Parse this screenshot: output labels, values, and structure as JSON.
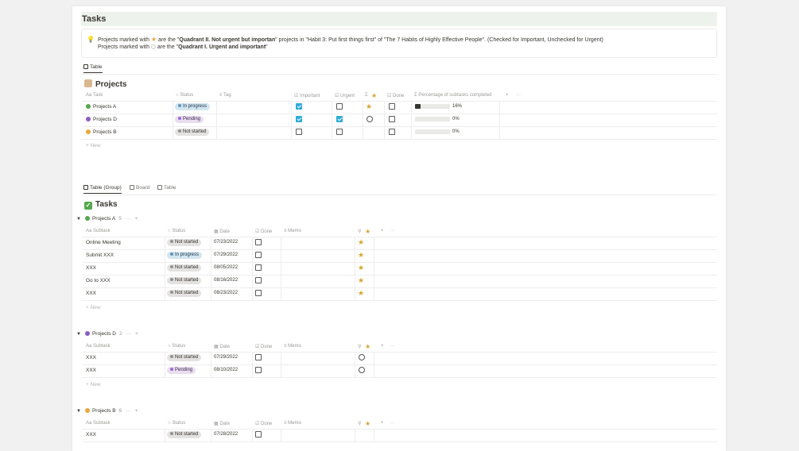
{
  "page": {
    "title": "Tasks"
  },
  "callout": {
    "line1_a": "Projects marked with",
    "line1_b": "are the \"",
    "line1_c": "Quadrant II. Not urgent but importan",
    "line1_d": "\" projects  in \"Habit 3: Put first things first\" of \"The 7 Habits of Highly Effective People\". (Checked for Important, Unchecked for Urgent)",
    "line2_a": "Projects marked with",
    "line2_b": "are the \"",
    "line2_c": "Quadrant I. Urgent and important",
    "line2_d": "\""
  },
  "projects_view": {
    "tabs": [
      "Table"
    ],
    "heading": "Projects",
    "columns": [
      "Task",
      "Status",
      "Tag",
      "Important",
      "Urgent",
      "Done",
      "Percentage of subtasks completed"
    ],
    "rows": [
      {
        "task": "Projects A",
        "status": "In progress",
        "important": true,
        "urgent": false,
        "mark": "star",
        "done": false,
        "pct": 0.16,
        "pct_label": "16%"
      },
      {
        "task": "Projects D",
        "status": "Pending",
        "important": true,
        "urgent": true,
        "mark": "circle",
        "done": false,
        "pct": 0,
        "pct_label": "0%"
      },
      {
        "task": "Projects B",
        "status": "Not started",
        "important": false,
        "urgent": false,
        "mark": "",
        "done": false,
        "pct": 0,
        "pct_label": "0%"
      }
    ],
    "new_label": "+ New"
  },
  "tasks_view": {
    "tabs": [
      "Table (Group)",
      "Board",
      "Table"
    ],
    "heading": "Tasks",
    "columns": [
      "Subtask",
      "Status",
      "Date",
      "Done",
      "Memo"
    ],
    "groups": [
      {
        "name": "Projects A",
        "count": "5",
        "rows": [
          {
            "subtask": "Online Meeting",
            "status": "Not started",
            "date": "07/23/2022",
            "mark": "star"
          },
          {
            "subtask": "Submit XXX",
            "status": "In progress",
            "date": "07/29/2022",
            "mark": "star"
          },
          {
            "subtask": "XXX",
            "status": "Not started",
            "date": "08/05/2022",
            "mark": "star"
          },
          {
            "subtask": "Go to XXX",
            "status": "Not started",
            "date": "08/16/2022",
            "mark": "star"
          },
          {
            "subtask": "XXX",
            "status": "Not started",
            "date": "08/23/2022",
            "mark": "star"
          }
        ]
      },
      {
        "name": "Projects D",
        "count": "2",
        "rows": [
          {
            "subtask": "XXX",
            "status": "Not started",
            "date": "07/29/2022",
            "mark": "circle"
          },
          {
            "subtask": "XXX",
            "status": "Pending",
            "date": "08/10/2022",
            "mark": "circle"
          }
        ]
      },
      {
        "name": "Projects B",
        "count": "6",
        "rows": [
          {
            "subtask": "XXX",
            "status": "Not started",
            "date": "07/28/2022",
            "mark": ""
          }
        ]
      }
    ],
    "new_label": "+ New",
    "more_label": "···",
    "add_label": "+"
  },
  "colors": {
    "title_bg": "#edf3ec",
    "star": "#d9a431",
    "checkbox_on": "#2eaadc"
  }
}
